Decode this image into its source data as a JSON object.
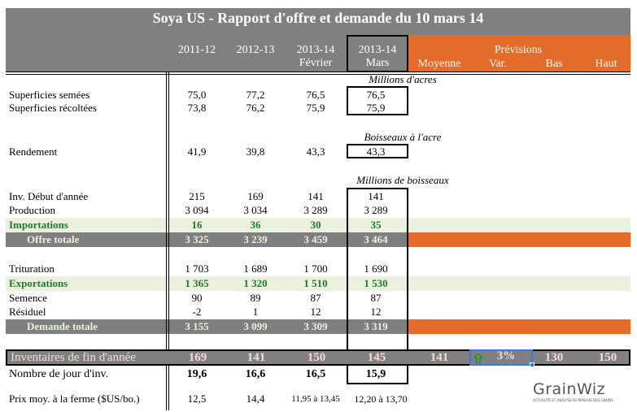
{
  "title": "Soya US - Rapport d'offre et demande du 10 mars 14",
  "columns": {
    "c1": "2011-12",
    "c2": "2012-13",
    "c3a": "2013-14",
    "c3b": "Février",
    "c4a": "2013-14",
    "c4b": "Mars",
    "prev": "Prévisions",
    "moy": "Moyenne",
    "var": "Var.",
    "bas": "Bas",
    "haut": "Haut"
  },
  "units": {
    "acres": "Millions d'acres",
    "bpa": "Boisseaux à l'acre",
    "bu": "Millions de boisseaux"
  },
  "rows": [
    {
      "label": "Superficies semées",
      "values": [
        "75,0",
        "77,2",
        "76,5",
        "76,5"
      ],
      "style": ""
    },
    {
      "label": "Superficies récoltées",
      "values": [
        "73,8",
        "76,2",
        "75,9",
        "75,9"
      ],
      "style": ""
    },
    {
      "label": "Rendement",
      "values": [
        "41,9",
        "39,8",
        "43,3",
        "43,3"
      ],
      "style": ""
    },
    {
      "label": "Inv. Début d'année",
      "values": [
        "215",
        "169",
        "141",
        "141"
      ],
      "style": ""
    },
    {
      "label": "Production",
      "values": [
        "3 094",
        "3 034",
        "3 289",
        "3 289"
      ],
      "style": ""
    },
    {
      "label": "Importations",
      "values": [
        "16",
        "36",
        "30",
        "35"
      ],
      "style": "green"
    },
    {
      "label": "Offre totale",
      "values": [
        "3 325",
        "3 239",
        "3 459",
        "3 464"
      ],
      "style": "gray"
    },
    {
      "label": "Trituration",
      "values": [
        "1 703",
        "1 689",
        "1 700",
        "1 690"
      ],
      "style": ""
    },
    {
      "label": "Exportations",
      "values": [
        "1 365",
        "1 320",
        "1 510",
        "1 530"
      ],
      "style": "green"
    },
    {
      "label": "Semence",
      "values": [
        "90",
        "89",
        "87",
        "87"
      ],
      "style": ""
    },
    {
      "label": "Résiduel",
      "values": [
        "-2",
        "1",
        "12",
        "12"
      ],
      "style": ""
    },
    {
      "label": "Demande totale",
      "values": [
        "3 155",
        "3 099",
        "3 309",
        "3 319"
      ],
      "style": "gray"
    }
  ],
  "inventory": {
    "label": "Inventaires de fin d'année",
    "values": [
      "169",
      "141",
      "150",
      "145"
    ],
    "moyenne": "141",
    "var": "3%",
    "var_icon": "arrow-up-icon",
    "bas": "130",
    "haut": "150"
  },
  "days": {
    "label": "Nombre de jour d'inv.",
    "values": [
      "19,6",
      "16,6",
      "16,5",
      "15,9"
    ]
  },
  "price": {
    "label": "Prix moy. à la ferme ($US/bo.)",
    "values": [
      "12,5",
      "14,4",
      "11,95 à 13,45",
      "12,20 à 13,70"
    ]
  },
  "logo": {
    "text": "GrainWiz",
    "tagline": "ACTUALITÉ ET ANALYSE DU MARCHÉ DES GRAINS"
  },
  "colors": {
    "header": "#808080",
    "orange": "#e46c2a",
    "green_text": "#1e7a2a",
    "green_band": "#ebf1de"
  }
}
